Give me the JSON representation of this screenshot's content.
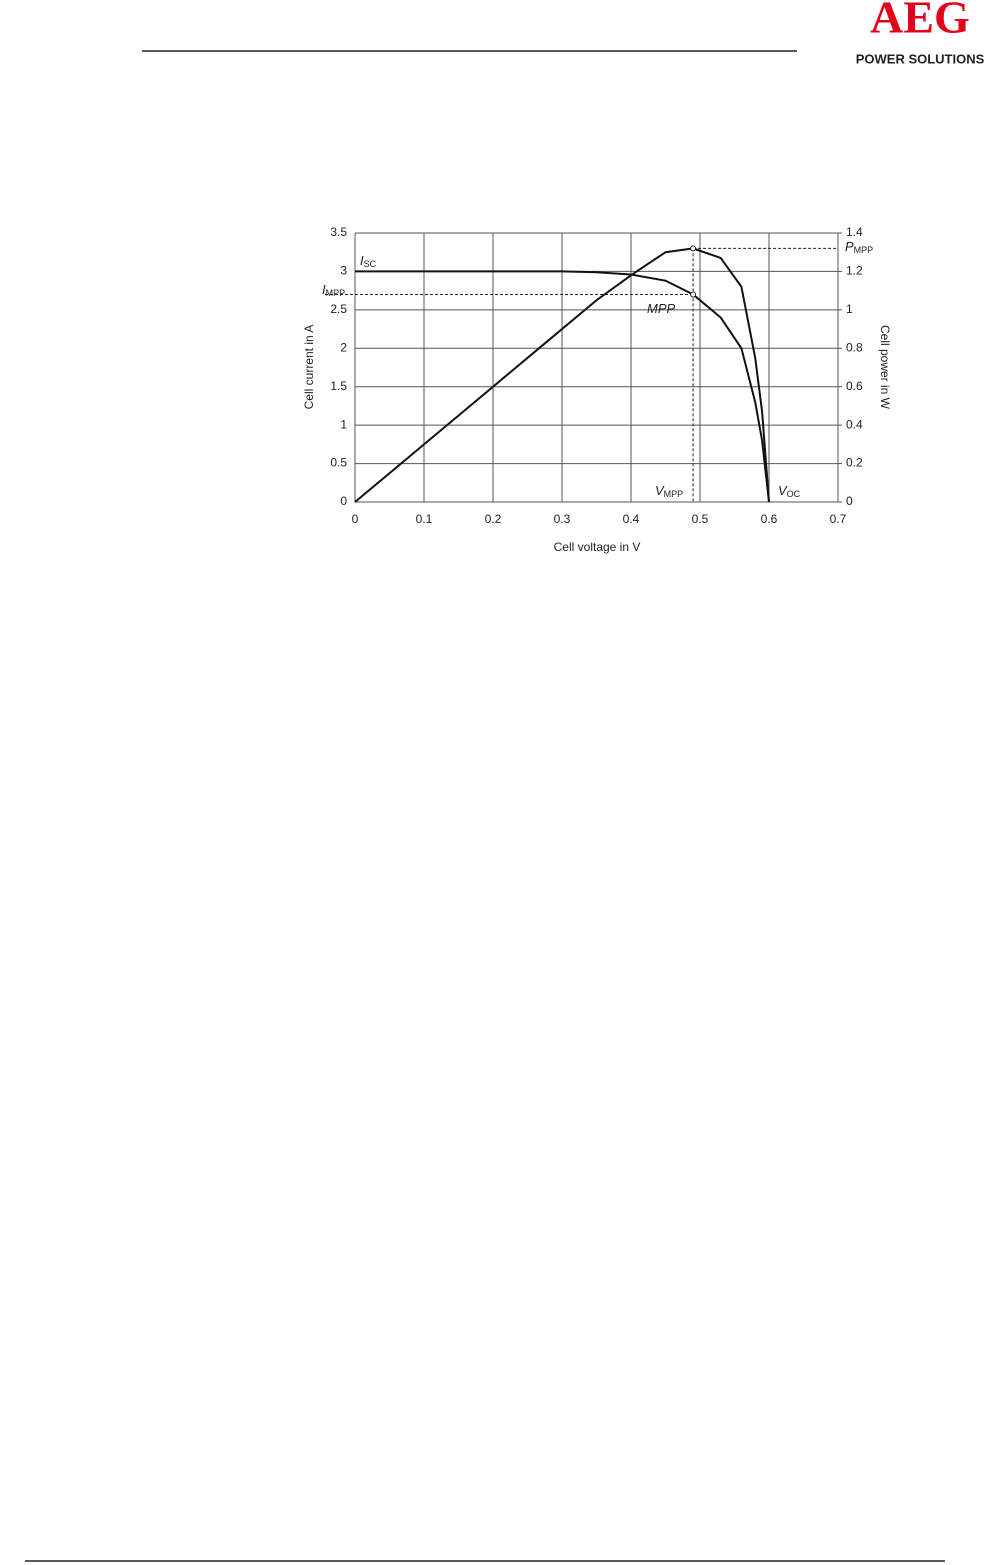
{
  "header": {
    "logo": "AEG",
    "tagline": "POWER SOLUTIONS"
  },
  "chart_data": {
    "type": "line",
    "xlabel": "Cell voltage in V",
    "ylabel": "Cell current in A",
    "y2label": "Cell power in W",
    "x": [
      0,
      0.1,
      0.2,
      0.3,
      0.35,
      0.4,
      0.45,
      0.49,
      0.53,
      0.56,
      0.58,
      0.59,
      0.6
    ],
    "series": [
      {
        "color": "#111111",
        "values": [
          3,
          3,
          3,
          3,
          2.99,
          2.96,
          2.88,
          2.7,
          2.4,
          2.0,
          1.3,
          0.8,
          0
        ]
      },
      {
        "color": "#111111",
        "axis": "y2",
        "values": [
          0,
          0.3,
          0.6,
          0.9,
          1.05,
          1.18,
          1.3,
          1.32,
          1.27,
          1.12,
          0.75,
          0.47,
          0
        ]
      }
    ],
    "mpp": {
      "x": 0.49,
      "y": 2.7,
      "y2": 1.32
    },
    "annotations": [
      {
        "main": "I",
        "sub": "SC"
      },
      {
        "main": "I",
        "sub": "MPP"
      },
      {
        "main": "MPP"
      },
      {
        "main": "V",
        "sub": "MPP"
      },
      {
        "main": "V",
        "sub": "OC"
      },
      {
        "main": "P",
        "sub": "MPP"
      }
    ],
    "xlim": [
      0,
      0.7
    ],
    "xticks": [
      0,
      0.1,
      0.2,
      0.3,
      0.4,
      0.5,
      0.6,
      0.7
    ],
    "ylim": [
      0,
      3.5
    ],
    "yticks": [
      0,
      0.5,
      1,
      1.5,
      2,
      2.5,
      3,
      3.5
    ],
    "y2lim": [
      0,
      1.4
    ],
    "y2ticks": [
      0,
      0.2,
      0.4,
      0.6,
      0.8,
      1,
      1.2,
      1.4
    ],
    "grid": true
  }
}
